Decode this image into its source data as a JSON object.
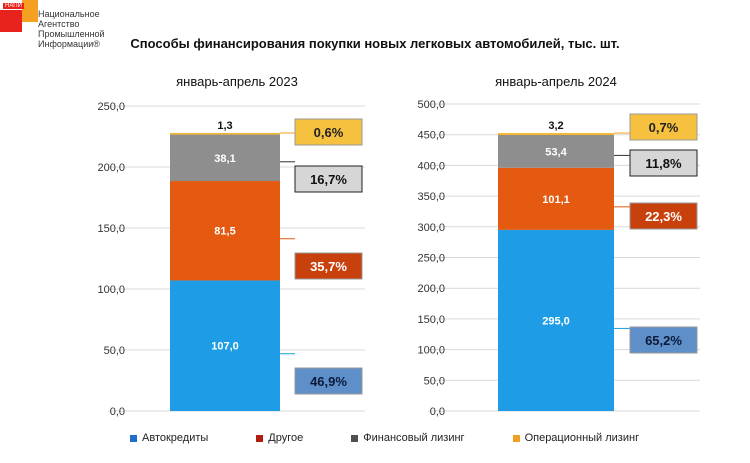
{
  "logo": {
    "small": "НАПИ",
    "text": "Национальное Агентство Промышленной Информации®"
  },
  "title": "Способы финансирования покупки новых  легковых автомобилей, тыс. шт.",
  "colors": {
    "Автокредиты": "#1e9de6",
    "Другое": "#e35a10",
    "Финансовый лизинг": "#8e8e8e",
    "Операционный лизинг": "#f5b731"
  },
  "legend": [
    {
      "label": "Автокредиты",
      "color": "#1f6fc8"
    },
    {
      "label": "Другое",
      "color": "#b01e10"
    },
    {
      "label": "Финансовый лизинг",
      "color": "#505050"
    },
    {
      "label": "Операционный лизинг",
      "color": "#f0a020"
    }
  ],
  "chart_data": [
    {
      "type": "bar",
      "stacked": true,
      "title": "январь-апрель 2023",
      "ylim": [
        0,
        250
      ],
      "yticks": [
        "0,0",
        "50,0",
        "100,0",
        "150,0",
        "200,0",
        "250,0"
      ],
      "grid": true,
      "series": [
        {
          "name": "Автокредиты",
          "values": [
            107.0
          ],
          "label": "107,0",
          "share": "46,9%"
        },
        {
          "name": "Другое",
          "values": [
            81.5
          ],
          "label": "81,5",
          "share": "35,7%"
        },
        {
          "name": "Финансовый лизинг",
          "values": [
            38.1
          ],
          "label": "38,1",
          "share": "16,7%"
        },
        {
          "name": "Операционный лизинг",
          "values": [
            1.3
          ],
          "label": "1,3",
          "share": "0,6%"
        }
      ]
    },
    {
      "type": "bar",
      "stacked": true,
      "title": "январь-апрель 2024",
      "ylim": [
        0,
        500
      ],
      "yticks": [
        "0,0",
        "50,0",
        "100,0",
        "150,0",
        "200,0",
        "250,0",
        "300,0",
        "350,0",
        "400,0",
        "450,0",
        "500,0"
      ],
      "grid": true,
      "series": [
        {
          "name": "Автокредиты",
          "values": [
            295.0
          ],
          "label": "295,0",
          "share": "65,2%"
        },
        {
          "name": "Другое",
          "values": [
            101.1
          ],
          "label": "101,1",
          "share": "22,3%"
        },
        {
          "name": "Финансовый лизинг",
          "values": [
            53.4
          ],
          "label": "53,4",
          "share": "11,8%"
        },
        {
          "name": "Операционный лизинг",
          "values": [
            3.2
          ],
          "label": "3,2",
          "share": "0,7%"
        }
      ]
    }
  ]
}
